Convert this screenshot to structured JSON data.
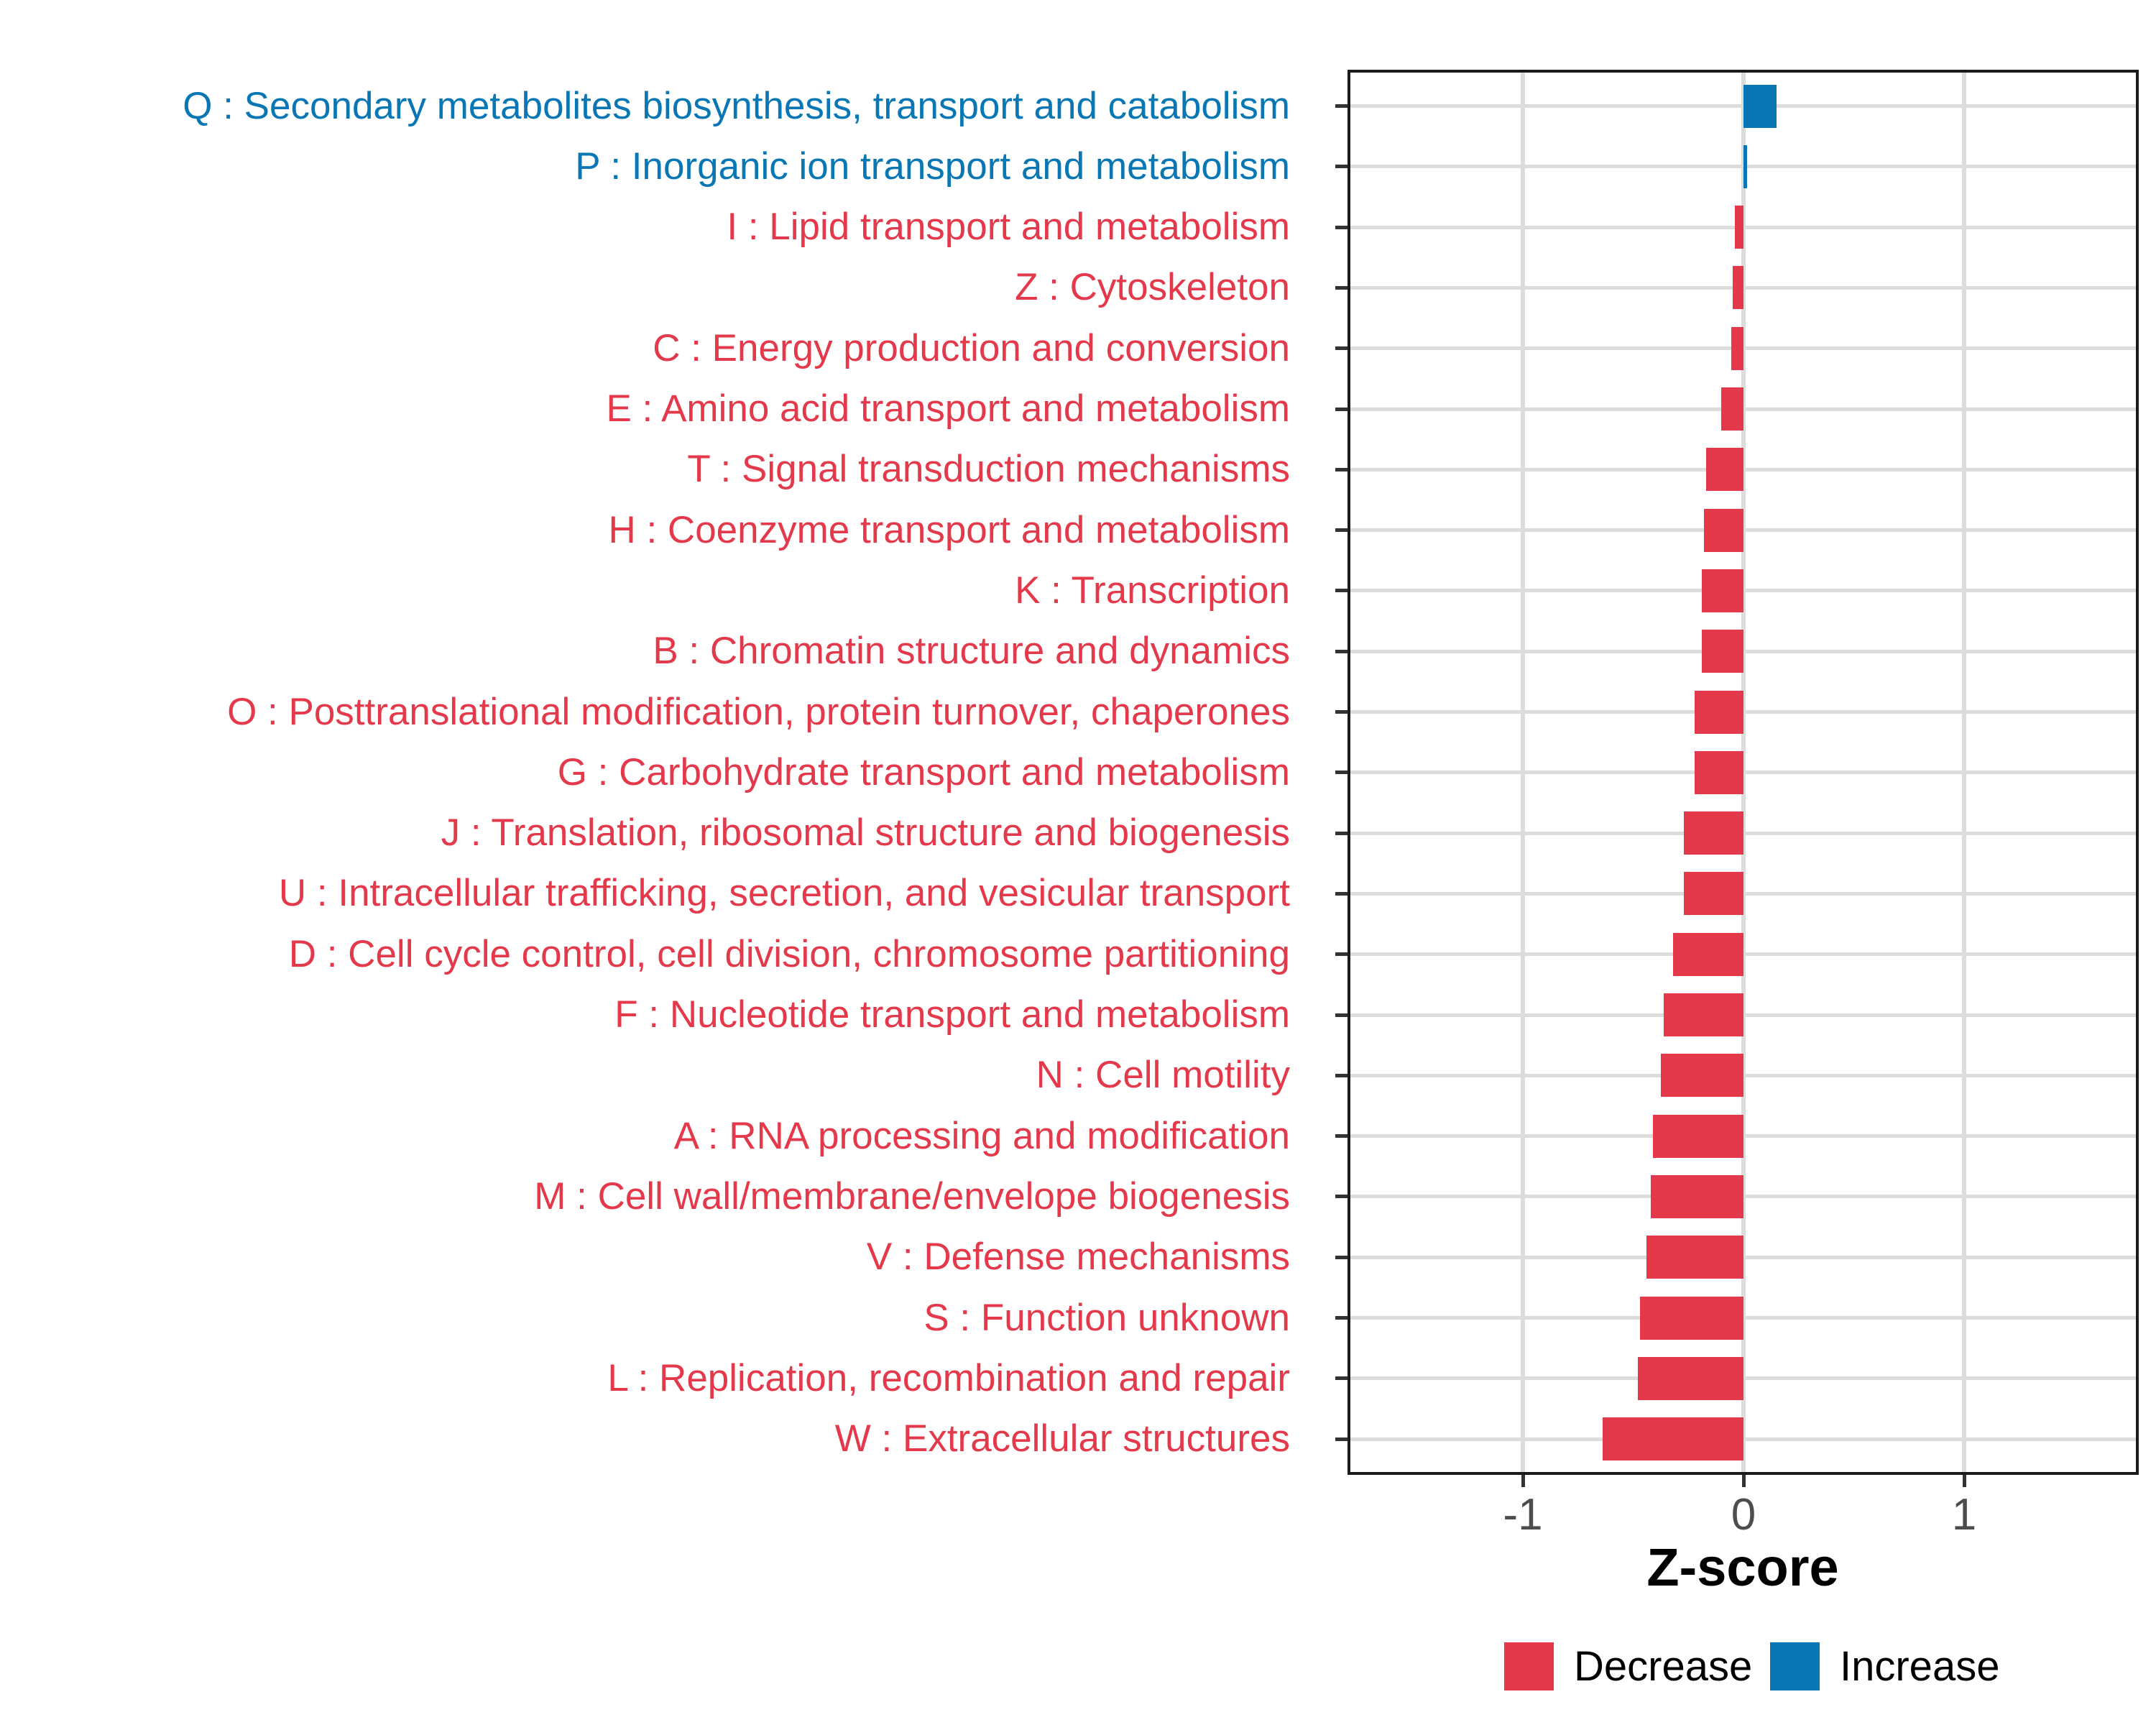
{
  "chart_data": {
    "type": "bar",
    "orientation": "horizontal",
    "xlabel": "Z-score",
    "x_ticks": [
      "-1",
      "0",
      "1"
    ],
    "x_tick_values": [
      -1,
      0,
      1
    ],
    "xlim": [
      -1.8,
      1.8
    ],
    "grid": "major-only",
    "legend_position": "bottom-right",
    "categories": [
      {
        "code": "Q",
        "label": "Q : Secondary metabolites biosynthesis, transport and catabolism",
        "value": 0.15,
        "group": "Increase"
      },
      {
        "code": "P",
        "label": "P : Inorganic ion transport and metabolism",
        "value": 0.015,
        "group": "Increase"
      },
      {
        "code": "I",
        "label": "I : Lipid transport and metabolism",
        "value": -0.04,
        "group": "Decrease"
      },
      {
        "code": "Z",
        "label": "Z : Cytoskeleton",
        "value": -0.05,
        "group": "Decrease"
      },
      {
        "code": "C",
        "label": "C : Energy production and conversion",
        "value": -0.055,
        "group": "Decrease"
      },
      {
        "code": "E",
        "label": "E : Amino acid transport and metabolism",
        "value": -0.1,
        "group": "Decrease"
      },
      {
        "code": "T",
        "label": "T : Signal transduction mechanisms",
        "value": -0.17,
        "group": "Decrease"
      },
      {
        "code": "H",
        "label": "H : Coenzyme transport and metabolism",
        "value": -0.18,
        "group": "Decrease"
      },
      {
        "code": "K",
        "label": "K : Transcription",
        "value": -0.19,
        "group": "Decrease"
      },
      {
        "code": "B",
        "label": "B : Chromatin structure and dynamics",
        "value": -0.19,
        "group": "Decrease"
      },
      {
        "code": "O",
        "label": "O : Posttranslational modification, protein turnover, chaperones",
        "value": -0.22,
        "group": "Decrease"
      },
      {
        "code": "G",
        "label": "G : Carbohydrate transport and metabolism",
        "value": -0.22,
        "group": "Decrease"
      },
      {
        "code": "J",
        "label": "J : Translation, ribosomal structure and biogenesis",
        "value": -0.27,
        "group": "Decrease"
      },
      {
        "code": "U",
        "label": "U : Intracellular trafficking, secretion, and vesicular transport",
        "value": -0.27,
        "group": "Decrease"
      },
      {
        "code": "D",
        "label": "D : Cell cycle control, cell division, chromosome partitioning",
        "value": -0.32,
        "group": "Decrease"
      },
      {
        "code": "F",
        "label": "F : Nucleotide transport and metabolism",
        "value": -0.36,
        "group": "Decrease"
      },
      {
        "code": "N",
        "label": "N : Cell motility",
        "value": -0.375,
        "group": "Decrease"
      },
      {
        "code": "A",
        "label": "A : RNA processing and modification",
        "value": -0.41,
        "group": "Decrease"
      },
      {
        "code": "M",
        "label": "M : Cell wall/membrane/envelope biogenesis",
        "value": -0.42,
        "group": "Decrease"
      },
      {
        "code": "V",
        "label": "V : Defense mechanisms",
        "value": -0.44,
        "group": "Decrease"
      },
      {
        "code": "S",
        "label": "S : Function unknown",
        "value": -0.47,
        "group": "Decrease"
      },
      {
        "code": "L",
        "label": "L : Replication, recombination and repair",
        "value": -0.48,
        "group": "Decrease"
      },
      {
        "code": "W",
        "label": "W : Extracellular structures",
        "value": -0.64,
        "group": "Decrease"
      }
    ],
    "legend": [
      {
        "label": "Decrease",
        "color": "#e4394b"
      },
      {
        "label": "Increase",
        "color": "#0877b4"
      }
    ]
  },
  "colors": {
    "decrease": "#e4394b",
    "increase": "#0877b4",
    "grid": "#dcdcdc",
    "axis_text": "#4d4d4d",
    "panel_border": "#1a1a1a",
    "tick_mark": "#333333"
  },
  "axis": {
    "xlabel": "Z-score"
  }
}
